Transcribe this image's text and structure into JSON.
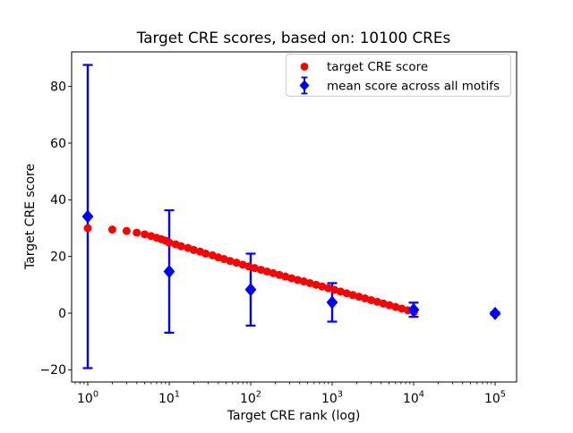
{
  "chart_data": {
    "type": "scatter",
    "title": "Target CRE scores, based on: 10100 CREs",
    "xlabel": "Target CRE rank (log)",
    "ylabel": "Target CRE score",
    "x_scale": "log",
    "grid": false,
    "background": "#ffffff",
    "axes_color": "#000000",
    "xlim_exp": [
      -0.198,
      5.264
    ],
    "ylim": [
      -24.3,
      92.2
    ],
    "x_tick_labels": [
      "10^0",
      "10^1",
      "10^2",
      "10^3",
      "10^4",
      "10^5"
    ],
    "x_tick_exponents": [
      0,
      1,
      2,
      3,
      4,
      5
    ],
    "y_ticks": [
      -20,
      0,
      20,
      40,
      60,
      80
    ],
    "y_tick_labels": [
      "−20",
      "0",
      "20",
      "40",
      "60",
      "80"
    ],
    "legend": {
      "position": "upper right",
      "border_color": "#cccccc"
    },
    "series": [
      {
        "name": "target CRE score",
        "type": "scatter",
        "marker": "circle",
        "color": "#ff0000",
        "points": [
          [
            1,
            30.0
          ],
          [
            2,
            29.5
          ],
          [
            3,
            29.0
          ],
          [
            4,
            28.4
          ],
          [
            5,
            27.8
          ],
          [
            6,
            27.2
          ],
          [
            7,
            26.6
          ],
          [
            8,
            26.1
          ],
          [
            9,
            25.6
          ],
          [
            10,
            24.9
          ],
          [
            12,
            24.3
          ],
          [
            14,
            23.6
          ],
          [
            17,
            23.0
          ],
          [
            20,
            22.3
          ],
          [
            24,
            21.7
          ],
          [
            28,
            21.0
          ],
          [
            34,
            20.4
          ],
          [
            40,
            19.7
          ],
          [
            47,
            19.1
          ],
          [
            56,
            18.4
          ],
          [
            67,
            17.8
          ],
          [
            80,
            17.1
          ],
          [
            95,
            16.5
          ],
          [
            112,
            15.9
          ],
          [
            134,
            15.3
          ],
          [
            159,
            14.7
          ],
          [
            189,
            14.1
          ],
          [
            225,
            13.5
          ],
          [
            267,
            12.9
          ],
          [
            318,
            12.3
          ],
          [
            378,
            11.7
          ],
          [
            449,
            11.2
          ],
          [
            534,
            10.6
          ],
          [
            635,
            10.0
          ],
          [
            754,
            9.4
          ],
          [
            897,
            8.8
          ],
          [
            1066,
            8.2
          ],
          [
            1267,
            7.6
          ],
          [
            1507,
            7.0
          ],
          [
            1792,
            6.4
          ],
          [
            2130,
            5.8
          ],
          [
            2532,
            5.2
          ],
          [
            3010,
            4.6
          ],
          [
            3578,
            4.0
          ],
          [
            4254,
            3.4
          ],
          [
            5057,
            2.8
          ],
          [
            6012,
            2.2
          ],
          [
            7147,
            1.6
          ],
          [
            8497,
            1.0
          ],
          [
            10100,
            0.4
          ]
        ]
      },
      {
        "name": "mean score across all motifs",
        "type": "errorbar",
        "marker": "diamond",
        "color": "#0000ff",
        "x": [
          1,
          10,
          100,
          1000,
          10000,
          100000
        ],
        "y": [
          34.1,
          14.7,
          8.3,
          3.8,
          1.2,
          -0.1
        ],
        "yerr": [
          53.5,
          21.6,
          12.7,
          6.8,
          2.5,
          0.4
        ]
      }
    ]
  }
}
